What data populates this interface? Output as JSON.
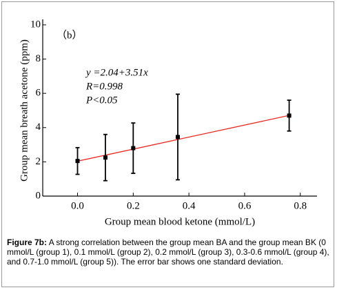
{
  "chart_data": {
    "type": "scatter",
    "panel_label": "（b）",
    "x_label": "Group mean blood ketone (mmol/L)",
    "y_label": "Group mean breath acetone  (ppm)",
    "annotations": [
      "y =2.04+3.51x",
      "R=0.998",
      "P<0.05"
    ],
    "xlim": [
      -0.125,
      0.86
    ],
    "ylim": [
      0,
      10.2
    ],
    "xticks": [
      {
        "value": 0,
        "label": "0.0"
      },
      0.2,
      0.4,
      0.6,
      0.8
    ],
    "yticks": [
      0,
      2,
      4,
      6,
      8,
      10
    ],
    "series": [
      {
        "name": "Group mean",
        "color": "#000000",
        "x": [
          0.0,
          0.1,
          0.2,
          0.36,
          0.76
        ],
        "values": [
          2.05,
          2.25,
          2.8,
          3.45,
          4.7
        ],
        "errors": [
          0.78,
          1.35,
          1.47,
          2.5,
          0.9
        ]
      },
      {
        "name": "Fit",
        "color": "#e8281e",
        "x": [
          0.0,
          0.76
        ],
        "values": [
          2.04,
          4.71
        ]
      }
    ]
  },
  "caption": {
    "label": "Figure 7b:",
    "text": "A strong correlation between the group mean BA and the group mean BK (0 mmol/L (group 1), 0.1 mmol/L (group 2), 0.2 mmol/L (group 3), 0.3-0.6 mmol/L (group 4), and 0.7-1.0 mmol/L (group 5)). The error bar shows one standard deviation."
  }
}
